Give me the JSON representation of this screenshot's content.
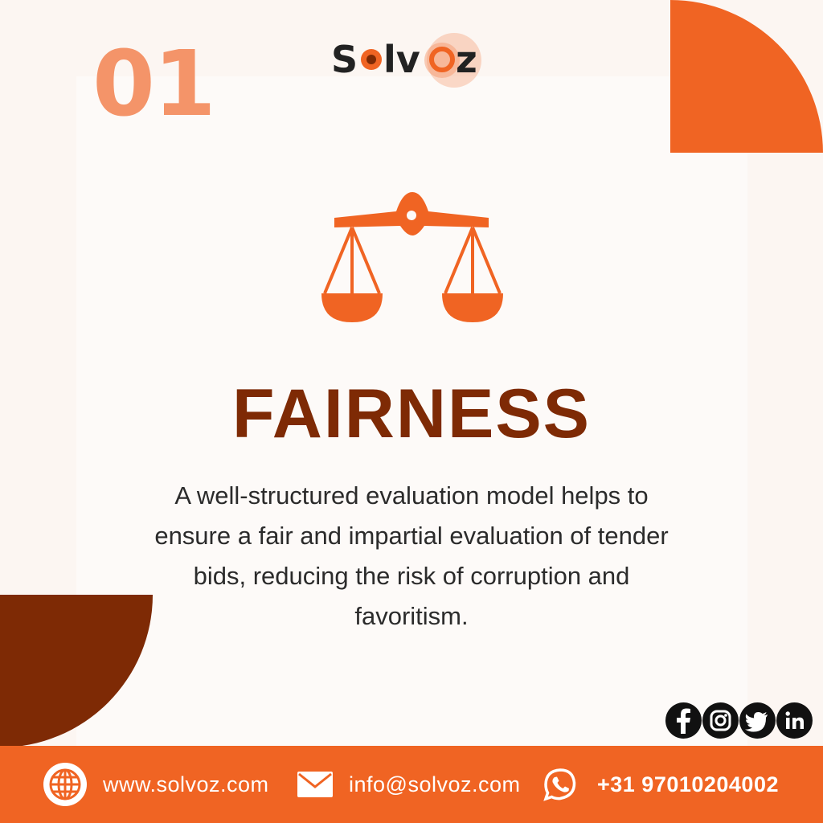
{
  "number": "01",
  "logo": {
    "text_left": "S",
    "text_right": "lv",
    "text_end": "z"
  },
  "title": "FAIRNESS",
  "description": "A well-structured evaluation model helps to ensure a fair and impartial evaluation of tender bids, reducing the risk of corruption and favoritism.",
  "social": [
    {
      "name": "facebook-icon",
      "glyph": "f"
    },
    {
      "name": "instagram-icon",
      "glyph": "◎"
    },
    {
      "name": "twitter-icon",
      "glyph": "🐦"
    },
    {
      "name": "linkedin-icon",
      "glyph": "in"
    }
  ],
  "footer": {
    "website": "www.solvoz.com",
    "email": "info@solvoz.com",
    "phone": "+31 97010204002"
  },
  "colors": {
    "accent_orange": "#F06423",
    "dark_brown": "#7E2A05",
    "number_peach": "#F49469",
    "background": "#FCF6F2"
  }
}
